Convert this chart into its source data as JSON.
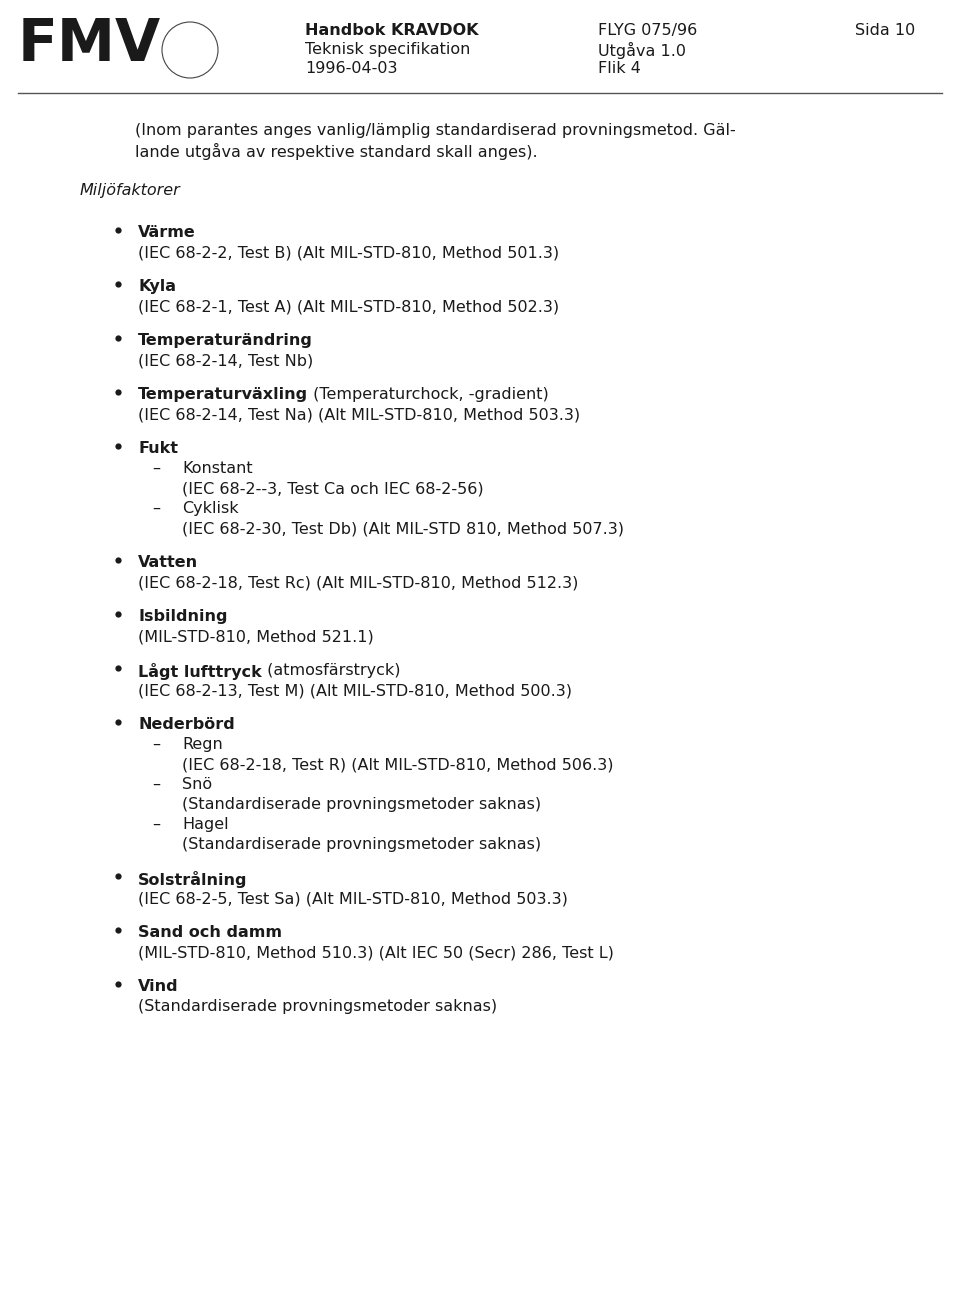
{
  "header_left_lines": [
    "Handbok KRAVDOK",
    "Teknisk specifikation",
    "1996-04-03"
  ],
  "header_mid_lines": [
    "FLYG 075/96",
    "Utgåva 1.0",
    "Flik 4"
  ],
  "header_right": "Sida 10",
  "fmv_text": "FMV",
  "intro_line1": "(Inom parantes anges vanlig/lämplig standardiserad provningsmetod. Gäl-",
  "intro_line2": "lande utgåva av respektive standard skall anges).",
  "section_title": "Miljöfaktorer",
  "items": [
    {
      "bold": "Värme",
      "normal": "",
      "sub": "(IEC 68-2-2, Test B) (Alt MIL-STD-810, Method 501.3)",
      "children": []
    },
    {
      "bold": "Kyla",
      "normal": "",
      "sub": "(IEC 68-2-1, Test A) (Alt MIL-STD-810, Method 502.3)",
      "children": []
    },
    {
      "bold": "Temperaturändring",
      "normal": "",
      "sub": "(IEC 68-2-14, Test Nb)",
      "children": []
    },
    {
      "bold": "Temperaturväxling",
      "normal": " (Temperaturchock, -gradient)",
      "sub": "(IEC 68-2-14, Test Na) (Alt MIL-STD-810, Method 503.3)",
      "children": []
    },
    {
      "bold": "Fukt",
      "normal": "",
      "sub": "",
      "children": [
        {
          "label": "Konstant",
          "detail": "(IEC 68-2--3, Test Ca och IEC 68-2-56)"
        },
        {
          "label": "Cyklisk",
          "detail": "(IEC 68-2-30, Test Db) (Alt MIL-STD 810, Method 507.3)"
        }
      ]
    },
    {
      "bold": "Vatten",
      "normal": "",
      "sub": "(IEC 68-2-18, Test Rc) (Alt MIL-STD-810, Method 512.3)",
      "children": []
    },
    {
      "bold": "Isbildning",
      "normal": "",
      "sub": "(MIL-STD-810, Method 521.1)",
      "children": []
    },
    {
      "bold": "Lågt lufttryck",
      "normal": " (atmosfärstryck)",
      "sub": "(IEC 68-2-13, Test M) (Alt MIL-STD-810, Method 500.3)",
      "children": []
    },
    {
      "bold": "Nederbörd",
      "normal": "",
      "sub": "",
      "children": [
        {
          "label": "Regn",
          "detail": "(IEC 68-2-18, Test R) (Alt MIL-STD-810, Method 506.3)"
        },
        {
          "label": "Snö",
          "detail": "(Standardiserade provningsmetoder saknas)"
        },
        {
          "label": "Hagel",
          "detail": "(Standardiserade provningsmetoder saknas)"
        }
      ]
    },
    {
      "bold": "Solstrålning",
      "normal": "",
      "sub": "(IEC 68-2-5, Test Sa) (Alt MIL-STD-810, Method 503.3)",
      "children": []
    },
    {
      "bold": "Sand och damm",
      "normal": "",
      "sub": "(MIL-STD-810, Method 510.3) (Alt IEC 50 (Secr) 286, Test L)",
      "children": []
    },
    {
      "bold": "Vind",
      "normal": "",
      "sub": "(Standardiserade provningsmetoder saknas)",
      "children": []
    }
  ],
  "bg_color": "#ffffff",
  "text_color": "#1a1a1a",
  "font_size": 11.5,
  "header_font_size": 11.5,
  "line_color": "#555555"
}
